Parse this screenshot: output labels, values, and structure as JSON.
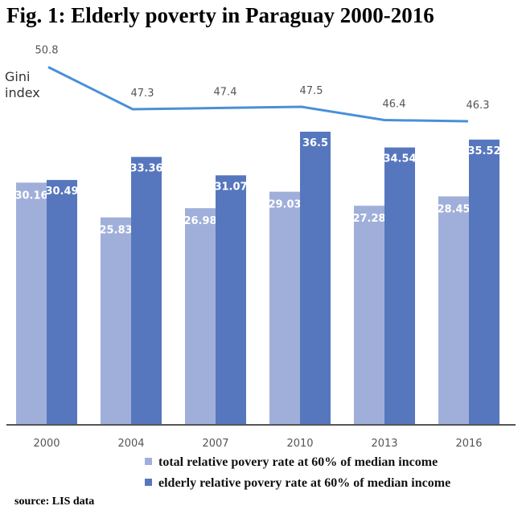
{
  "chart_data": {
    "type": "bar",
    "title": "Fig. 1: Elderly poverty in Paraguay 2000-2016",
    "categories": [
      "2000",
      "2004",
      "2007",
      "2010",
      "2013",
      "2016"
    ],
    "series": [
      {
        "name": "total relative povery rate at 60% of median income",
        "values": [
          30.16,
          25.83,
          26.98,
          29.03,
          27.28,
          28.45
        ],
        "color": "#a0afda"
      },
      {
        "name": "elderly relative povery rate at 60% of median income",
        "values": [
          30.49,
          33.36,
          31.07,
          36.5,
          34.54,
          35.52
        ],
        "color": "#5677be"
      }
    ],
    "line_series": {
      "name": "Gini index",
      "values": [
        50.8,
        47.3,
        47.4,
        47.5,
        46.4,
        46.3
      ],
      "color": "#4a90d6"
    },
    "ylim": [
      0,
      40
    ],
    "grid": false,
    "legend": "bottom-right",
    "source": "source: LIS data"
  }
}
